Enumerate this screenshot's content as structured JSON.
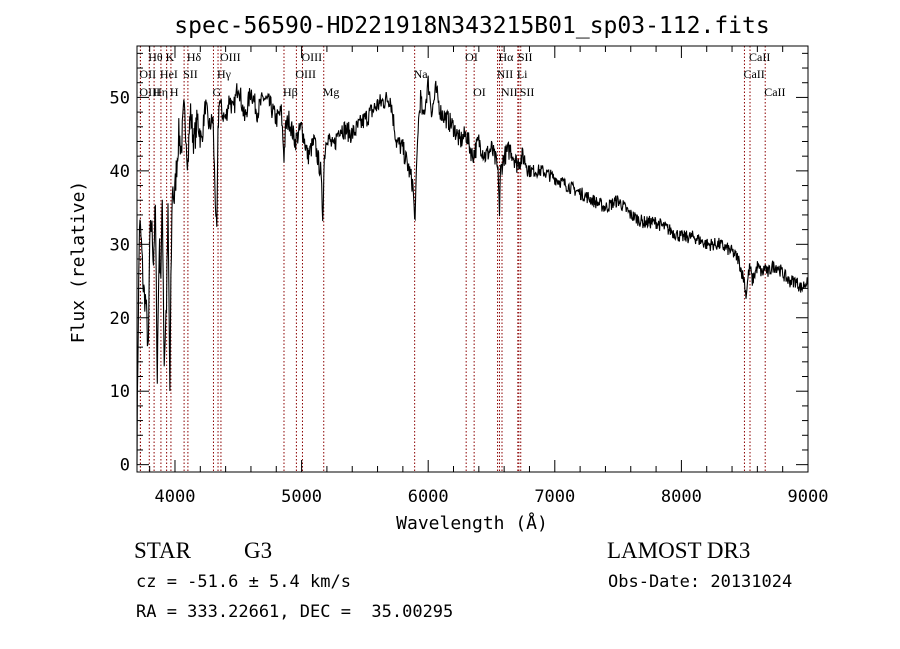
{
  "chart_data": {
    "type": "line",
    "title": "spec-56590-HD221918N343215B01_sp03-112.fits",
    "xlabel": "Wavelength (Å)",
    "ylabel": "Flux (relative)",
    "xlim": [
      3700,
      9000
    ],
    "ylim": [
      -1,
      57
    ],
    "xticks": [
      4000,
      5000,
      6000,
      7000,
      8000,
      9000
    ],
    "yticks": [
      0,
      10,
      20,
      30,
      40,
      50
    ],
    "x_minor_step": 200,
    "y_minor_step": 2,
    "grid": false,
    "line_color": "#000000",
    "marker_color": "#8b0000",
    "series": [
      {
        "x": [
          3700,
          3710,
          3720,
          3735,
          3750,
          3770,
          3790,
          3800,
          3815,
          3830,
          3845,
          3860,
          3875,
          3889,
          3900,
          3915,
          3933,
          3945,
          3960,
          3968,
          3980,
          3995,
          4010,
          4030,
          4050,
          4070,
          4085,
          4102,
          4120,
          4150,
          4180,
          4210,
          4240,
          4270,
          4300,
          4315,
          4330,
          4340,
          4350,
          4370,
          4400,
          4430,
          4460,
          4500,
          4550,
          4600,
          4650,
          4700,
          4750,
          4800,
          4840,
          4861,
          4875,
          4900,
          4950,
          5000,
          5050,
          5100,
          5150,
          5167,
          5180,
          5200,
          5250,
          5300,
          5400,
          5500,
          5600,
          5700,
          5750,
          5800,
          5850,
          5880,
          5893,
          5905,
          5920,
          5940,
          5960,
          6000,
          6030,
          6060,
          6100,
          6150,
          6200,
          6250,
          6300,
          6350,
          6400,
          6450,
          6500,
          6540,
          6555,
          6563,
          6572,
          6600,
          6650,
          6700,
          6750,
          6800,
          6900,
          7000,
          7100,
          7200,
          7300,
          7400,
          7500,
          7600,
          7700,
          7800,
          7900,
          8000,
          8100,
          8200,
          8300,
          8400,
          8450,
          8480,
          8498,
          8510,
          8530,
          8542,
          8560,
          8600,
          8640,
          8662,
          8680,
          8720,
          8760,
          8800,
          8850,
          8900,
          8950,
          8990,
          9000
        ],
        "y": [
          2,
          20,
          33,
          30,
          24,
          22,
          15,
          30,
          33,
          28,
          35,
          12,
          30,
          26,
          36,
          14,
          22,
          34,
          10,
          24,
          38,
          36,
          40,
          45,
          43,
          48,
          46,
          41,
          48,
          44,
          47,
          44,
          49,
          46,
          47,
          38,
          31,
          45,
          50,
          48,
          47,
          50,
          48,
          52,
          47,
          51,
          48,
          50,
          49,
          47,
          48,
          42,
          46,
          47,
          44,
          46,
          42,
          44,
          40,
          34,
          42,
          45,
          43,
          46,
          45,
          47,
          49,
          50,
          44,
          43,
          40,
          38,
          33,
          38,
          46,
          50,
          47,
          52,
          48,
          51,
          48,
          47,
          46,
          44,
          45,
          42,
          44,
          42,
          43,
          41,
          39,
          34,
          40,
          42,
          43,
          41,
          42,
          40,
          40,
          39,
          38,
          37,
          36,
          35,
          36,
          34,
          33,
          33,
          32,
          31,
          31,
          30,
          30,
          29,
          28,
          26,
          25,
          23,
          26,
          27,
          25,
          27,
          26,
          27,
          26,
          27,
          27,
          26,
          25,
          25,
          24,
          25,
          24
        ]
      }
    ],
    "lines": [
      {
        "label": "Hθ",
        "x": 3797,
        "tier": 1
      },
      {
        "label": "OII",
        "x": 3727,
        "tier": 2
      },
      {
        "label": "OIII",
        "x": 3727,
        "tier": 3
      },
      {
        "label": "HeI",
        "x": 3889,
        "tier": 2
      },
      {
        "label": "Hη",
        "x": 3835,
        "tier": 3
      },
      {
        "label": "K",
        "x": 3934,
        "tier": 1
      },
      {
        "label": "H",
        "x": 3968,
        "tier": 3
      },
      {
        "label": "SII",
        "x": 4072,
        "tier": 2
      },
      {
        "label": "Hδ",
        "x": 4102,
        "tier": 1
      },
      {
        "label": "OIII",
        "x": 4363,
        "tier": 1
      },
      {
        "label": "Hγ",
        "x": 4340,
        "tier": 2
      },
      {
        "label": "G",
        "x": 4304,
        "tier": 3
      },
      {
        "label": "OIII",
        "x": 5007,
        "tier": 1
      },
      {
        "label": "OIII",
        "x": 4959,
        "tier": 2
      },
      {
        "label": "Hβ",
        "x": 4861,
        "tier": 3
      },
      {
        "label": "Mg",
        "x": 5175,
        "tier": 3
      },
      {
        "label": "Na",
        "x": 5893,
        "tier": 2
      },
      {
        "label": "OI",
        "x": 6300,
        "tier": 1
      },
      {
        "label": "OI",
        "x": 6363,
        "tier": 3
      },
      {
        "label": "Hα",
        "x": 6563,
        "tier": 1
      },
      {
        "label": "SII",
        "x": 6716,
        "tier": 1
      },
      {
        "label": "NII",
        "x": 6548,
        "tier": 2
      },
      {
        "label": "Li",
        "x": 6708,
        "tier": 2
      },
      {
        "label": "NII",
        "x": 6583,
        "tier": 3
      },
      {
        "label": "SII",
        "x": 6731,
        "tier": 3
      },
      {
        "label": "CaII",
        "x": 8542,
        "tier": 1
      },
      {
        "label": "CaII",
        "x": 8498,
        "tier": 2
      },
      {
        "label": "CaII",
        "x": 8662,
        "tier": 3
      }
    ]
  },
  "info": {
    "object_class": "STAR",
    "subclass": "G3",
    "survey": "LAMOST DR3",
    "cz": "cz = -51.6 ± 5.4 km/s",
    "obs_date": "Obs-Date: 20131024",
    "coords": "RA = 333.22661, DEC =  35.00295"
  }
}
